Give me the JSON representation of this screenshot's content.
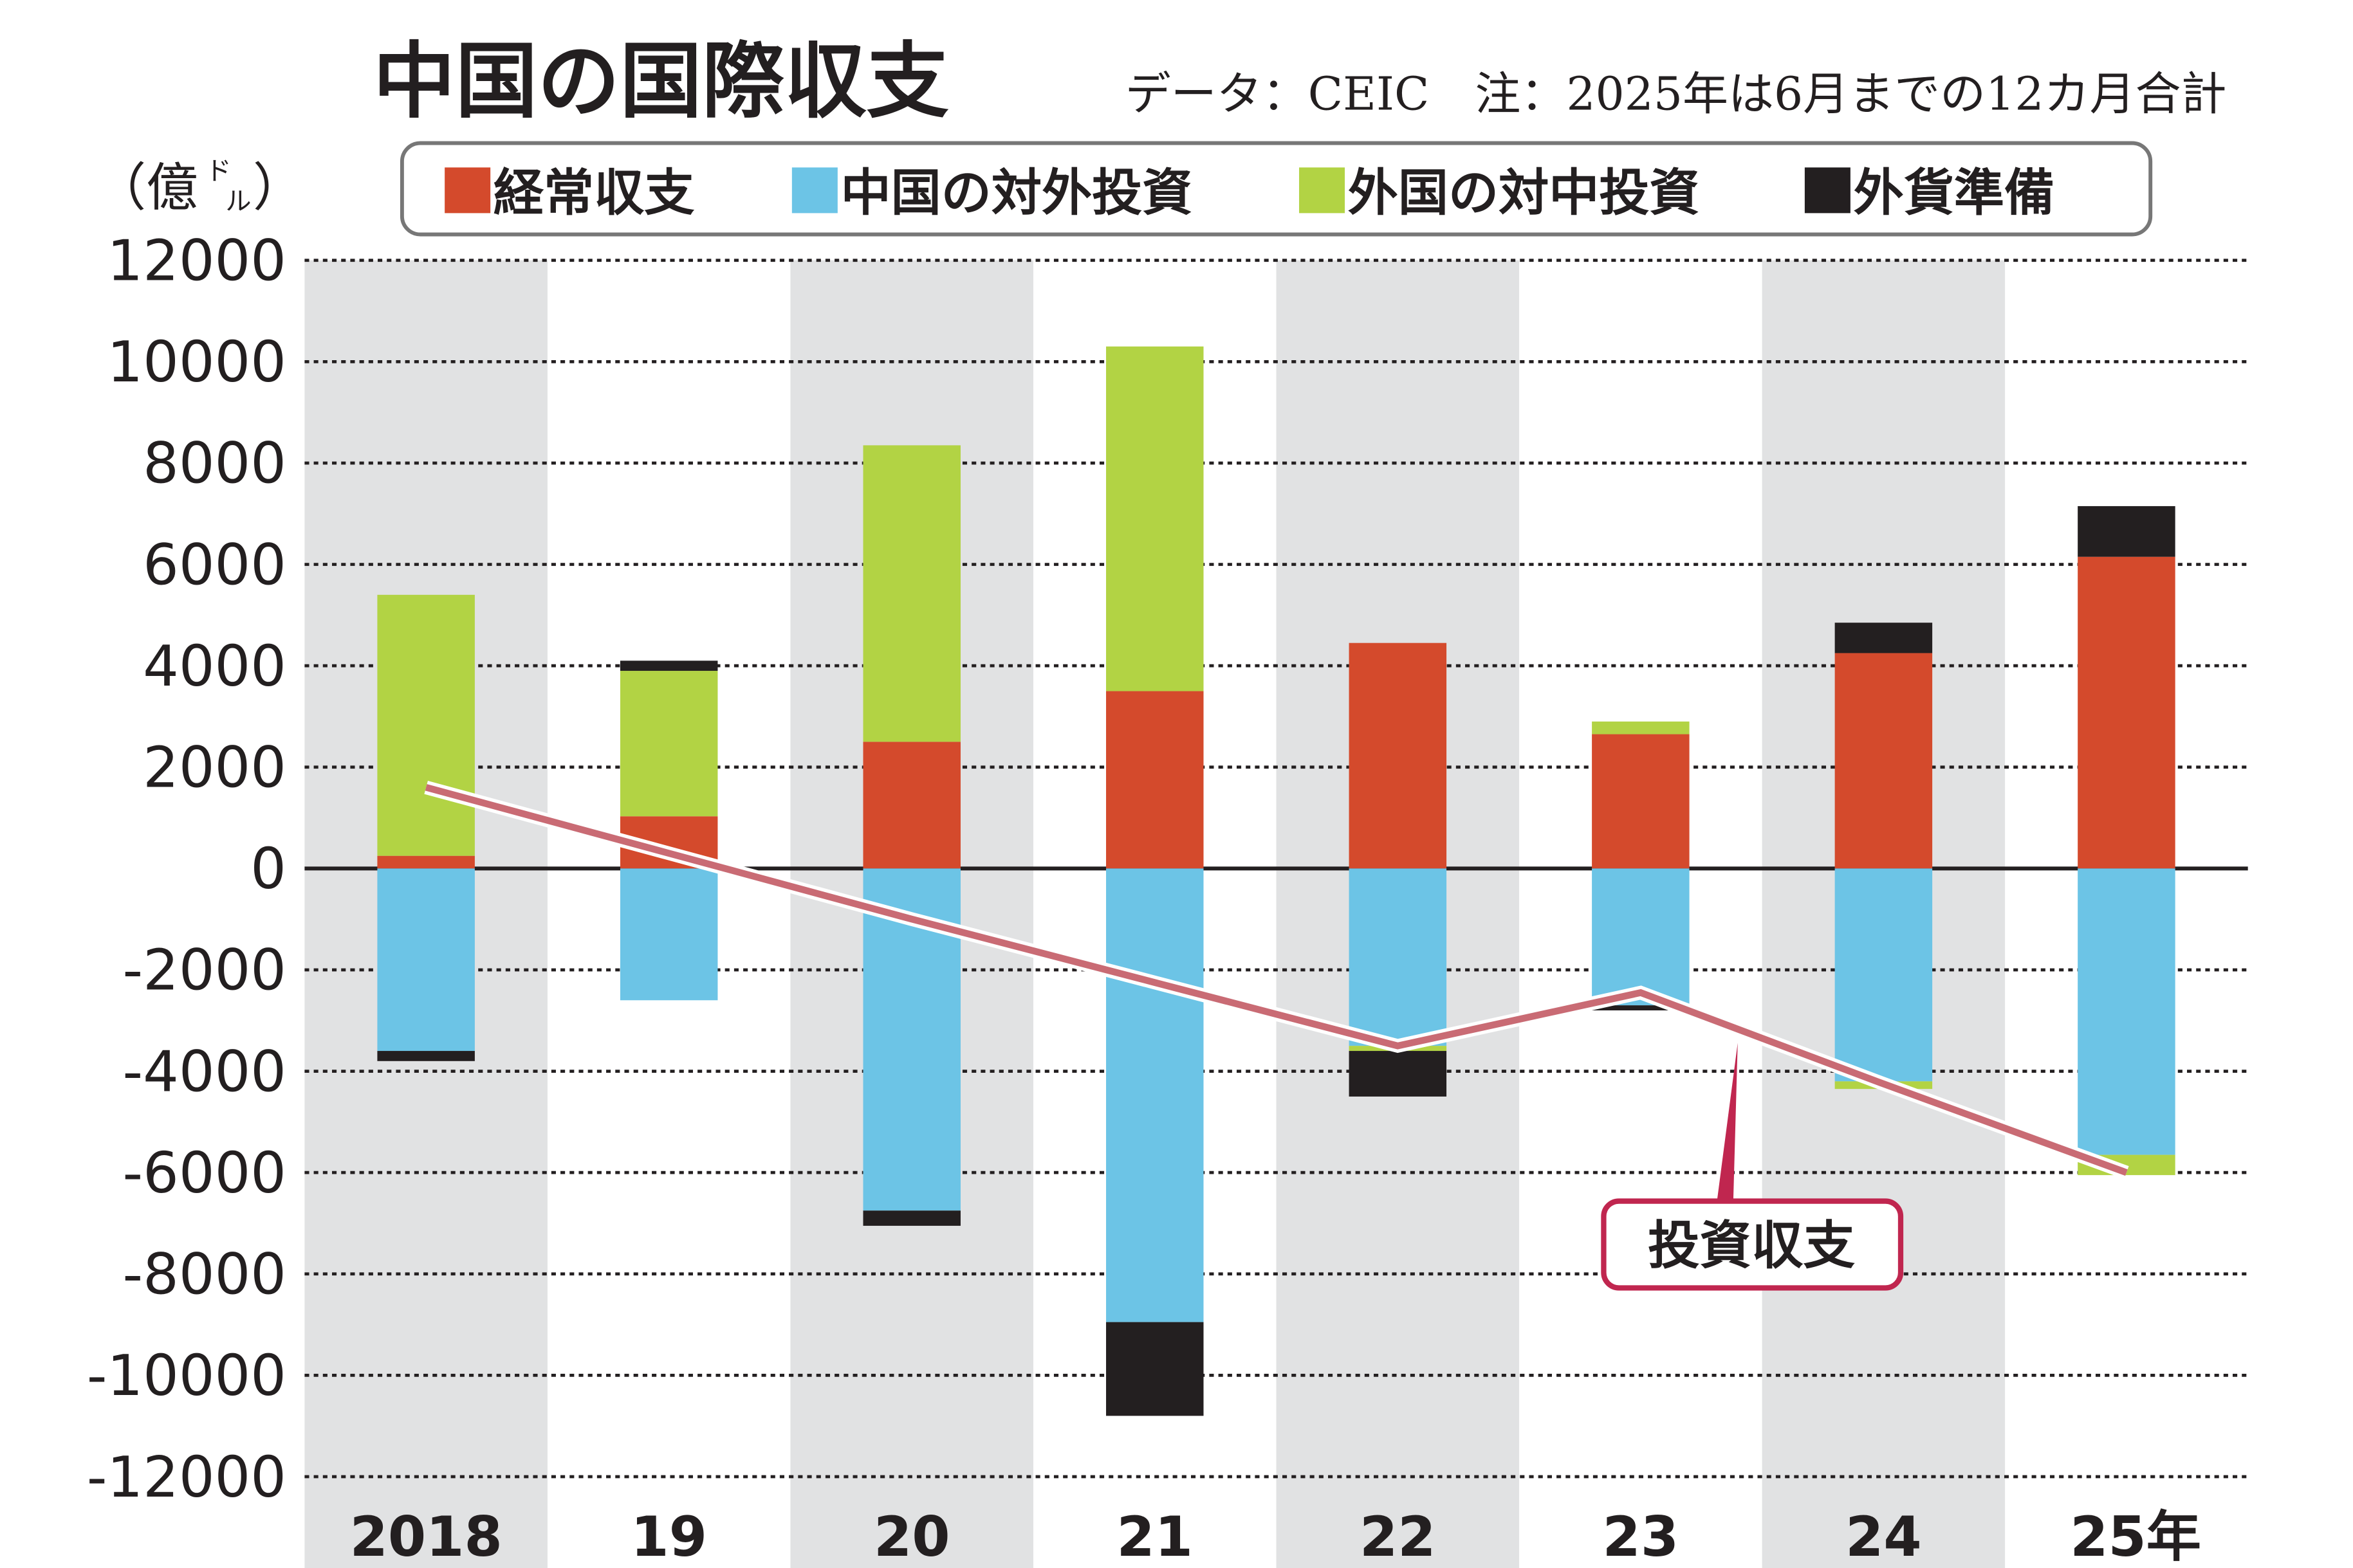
{
  "title": "中国の国際収支",
  "source_note": "データ：CEIC　注：2025年は6月までの12カ月合計",
  "unit_main": "（億",
  "unit_small_1": "ド",
  "unit_small_2": "ル",
  "unit_close": "）",
  "colors": {
    "current_account": "#d44a2c",
    "outward_investment": "#6cc4e6",
    "inward_investment": "#b2d344",
    "fx_reserves": "#231f20",
    "investment_balance_line": "#c96b74",
    "callout": "#c0264f",
    "band": "#e1e2e3"
  },
  "chart_data": {
    "type": "bar",
    "stacked": true,
    "categories": [
      "2018",
      "19",
      "20",
      "21",
      "22",
      "23",
      "24",
      "25年"
    ],
    "ylim": [
      -12000,
      12000
    ],
    "yticks": [
      12000,
      10000,
      8000,
      6000,
      4000,
      2000,
      0,
      -2000,
      -4000,
      -6000,
      -8000,
      -10000,
      -12000
    ],
    "grid": true,
    "legend_position": "top",
    "series": [
      {
        "name": "経常収支",
        "key": "current_account",
        "values": [
          250,
          1030,
          2500,
          3500,
          4450,
          2650,
          4250,
          6150
        ]
      },
      {
        "name": "中国の対外投資",
        "key": "outward_investment",
        "values": [
          -3600,
          -2600,
          -6750,
          -8950,
          -3500,
          -2700,
          -4200,
          -5650
        ]
      },
      {
        "name": "外国の対中投資",
        "key": "inward_investment",
        "values": [
          5150,
          2870,
          5850,
          6800,
          -100,
          250,
          -150,
          -400
        ]
      },
      {
        "name": "外貨準備",
        "key": "fx_reserves",
        "values": [
          -200,
          200,
          -300,
          -1850,
          -900,
          -100,
          600,
          1000
        ]
      }
    ],
    "line": {
      "name": "投資収支",
      "values": [
        1600,
        300,
        -1000,
        -2250,
        -3500,
        -2450,
        -4250,
        -6000
      ]
    }
  }
}
